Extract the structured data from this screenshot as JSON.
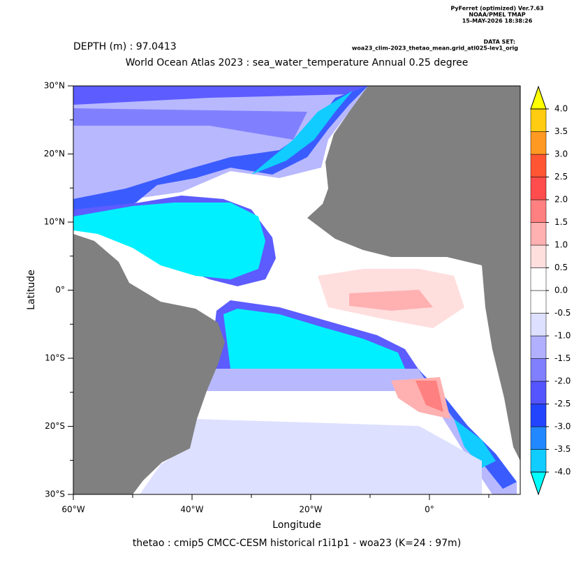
{
  "chart_data": {
    "type": "contour",
    "header": [
      "PyFerret (optimized) Ver.7.63",
      "NOAA/PMEL TMAP",
      "15-MAY-2026 18:38:26"
    ],
    "dataset_label": "DATA SET:",
    "dataset": "woa23_clim-2023_thetao_mean.grid_atl025-lev1_orig",
    "subtitle": "DEPTH (m) : 97.0413",
    "title": "World Ocean Atlas 2023 : sea_water_temperature Annual  0.25 degree",
    "caption": "thetao : cmip5 CMCC-CESM historical r1i1p1 - woa23  (K=24 : 97m)",
    "xlabel": "Longitude",
    "ylabel": "Latitude",
    "xlim": [
      -60,
      15.3
    ],
    "ylim": [
      -30,
      30
    ],
    "xticks": [
      {
        "value": -60,
        "label": "60°W"
      },
      {
        "value": -40,
        "label": "40°W"
      },
      {
        "value": -20,
        "label": "20°W"
      },
      {
        "value": 0,
        "label": "0°"
      }
    ],
    "xminor": [
      -50,
      -30,
      -10,
      10
    ],
    "yticks": [
      {
        "value": -30,
        "label": "30°S"
      },
      {
        "value": -20,
        "label": "20°S"
      },
      {
        "value": -10,
        "label": "10°S"
      },
      {
        "value": 0,
        "label": "0°"
      },
      {
        "value": 10,
        "label": "10°N"
      },
      {
        "value": 20,
        "label": "20°N"
      },
      {
        "value": 30,
        "label": "30°N"
      }
    ],
    "yminor": [
      -25,
      -15,
      -5,
      5,
      15,
      25
    ],
    "levels": [
      {
        "value": -4,
        "label": "-4.0"
      },
      {
        "value": -3.5,
        "label": "-3.5"
      },
      {
        "value": -3,
        "label": "-3.0"
      },
      {
        "value": -2.5,
        "label": "-2.5"
      },
      {
        "value": -2,
        "label": "-2.0"
      },
      {
        "value": -1.5,
        "label": "-1.5"
      },
      {
        "value": -1,
        "label": "-1.0"
      },
      {
        "value": -0.5,
        "label": "-0.5"
      },
      {
        "value": 0,
        "label": "0.0"
      },
      {
        "value": 0.5,
        "label": "0.5"
      },
      {
        "value": 1,
        "label": "1.0"
      },
      {
        "value": 1.5,
        "label": "1.5"
      },
      {
        "value": 2,
        "label": "2.0"
      },
      {
        "value": 2.5,
        "label": "2.5"
      },
      {
        "value": 3,
        "label": "3.0"
      },
      {
        "value": 3.5,
        "label": "3.5"
      },
      {
        "value": 4,
        "label": "4.0"
      }
    ],
    "colors": [
      "#11ccff",
      "#2288ff",
      "#2244ff",
      "#5555ff",
      "#8080ff",
      "#b0b0ff",
      "#dde0ff",
      "#ffffff",
      "#ffffff",
      "#ffdede",
      "#ffb0b0",
      "#ff8080",
      "#ff4c4c",
      "#ff5533",
      "#ff9922",
      "#ffcc11"
    ],
    "under_color": "#00ffff",
    "over_color": "#ffff00",
    "land_color": "#808080"
  }
}
